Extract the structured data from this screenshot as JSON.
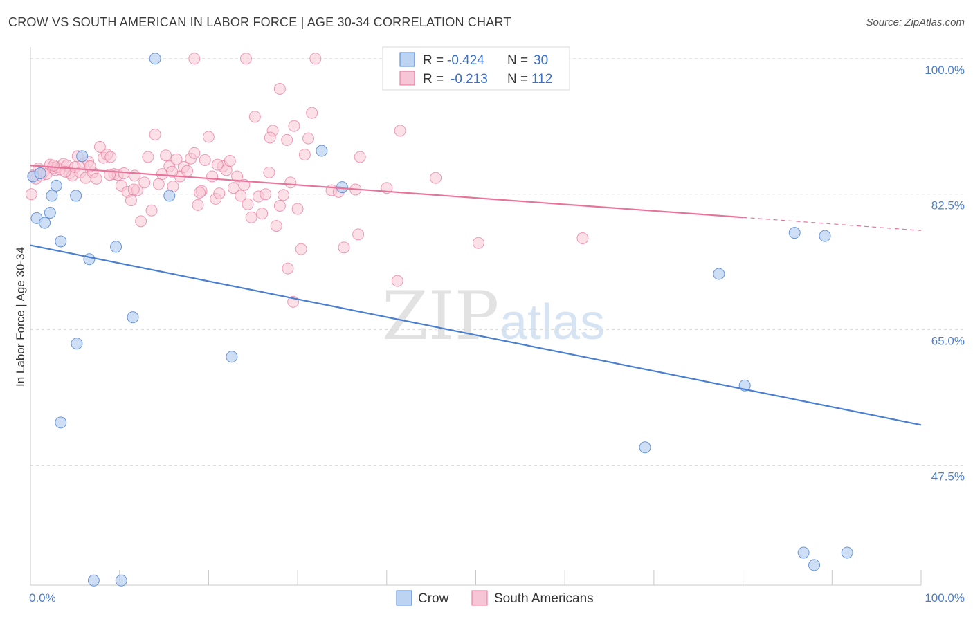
{
  "header": {
    "title": "CROW VS SOUTH AMERICAN IN LABOR FORCE | AGE 30-34 CORRELATION CHART",
    "source": "Source: ZipAtlas.com"
  },
  "watermark": {
    "zip": "ZIP",
    "atlas": "atlas"
  },
  "legend": {
    "r_label": "R =",
    "n_label": "N =",
    "rows": [
      {
        "r": "-0.424",
        "n": "30"
      },
      {
        "r": "-0.213",
        "n": "112"
      }
    ]
  },
  "chart_data": {
    "type": "scatter",
    "title": "CROW VS SOUTH AMERICAN IN LABOR FORCE | AGE 30-34 CORRELATION CHART",
    "xlabel": "",
    "ylabel": "In Labor Force | Age 30-34",
    "xlim": [
      0,
      100
    ],
    "ylim": [
      32,
      101.5
    ],
    "x_tick_labels": [
      "0.0%",
      "100.0%"
    ],
    "y_ticks": [
      100,
      82.5,
      65,
      47.5
    ],
    "y_tick_labels": [
      "100.0%",
      "82.5%",
      "65.0%",
      "47.5%"
    ],
    "grid": "horizontal dashed",
    "legend_position": "top-center",
    "colors": {
      "crow": "#4a7fd0",
      "crow_fill": "#bcd3f2",
      "south": "#e8739a",
      "south_fill": "#f7c6d6"
    },
    "series": [
      {
        "name": "Crow",
        "r": -0.424,
        "n": 30,
        "trend": {
          "x0": 0,
          "y0": 75.9,
          "x1": 100,
          "y1": 52.7
        },
        "points": [
          [
            0.3,
            84.8
          ],
          [
            0.7,
            79.4
          ],
          [
            1.6,
            78.8
          ],
          [
            2.2,
            80.1
          ],
          [
            2.4,
            82.3
          ],
          [
            2.9,
            83.6
          ],
          [
            3.4,
            76.4
          ],
          [
            5.1,
            82.3
          ],
          [
            5.8,
            87.4
          ],
          [
            6.6,
            74.1
          ],
          [
            7.1,
            32.6
          ],
          [
            9.6,
            75.7
          ],
          [
            10.2,
            32.6
          ],
          [
            11.5,
            66.6
          ],
          [
            14.0,
            100.0
          ],
          [
            15.6,
            82.3
          ],
          [
            5.2,
            63.2
          ],
          [
            3.4,
            53.0
          ],
          [
            22.6,
            61.5
          ],
          [
            32.7,
            88.1
          ],
          [
            35.0,
            83.4
          ],
          [
            69.0,
            49.8
          ],
          [
            77.3,
            72.2
          ],
          [
            80.2,
            57.8
          ],
          [
            85.8,
            77.5
          ],
          [
            86.8,
            36.2
          ],
          [
            88.0,
            34.6
          ],
          [
            89.2,
            77.1
          ],
          [
            91.7,
            36.2
          ],
          [
            1.1,
            85.2
          ]
        ]
      },
      {
        "name": "South Americans",
        "r": -0.213,
        "n": 112,
        "trend": {
          "x0": 0,
          "y0": 86.2,
          "x1": 80.0,
          "y1": 79.5,
          "dash_to_x": 100,
          "dash_to_y": 77.8
        },
        "points": [
          [
            0.1,
            82.5
          ],
          [
            0.4,
            85.0
          ],
          [
            0.6,
            84.5
          ],
          [
            0.9,
            85.8
          ],
          [
            1.2,
            84.9
          ],
          [
            1.5,
            85.4
          ],
          [
            1.8,
            85.1
          ],
          [
            2.2,
            86.3
          ],
          [
            2.5,
            85.9
          ],
          [
            2.8,
            85.6
          ],
          [
            3.0,
            86.0
          ],
          [
            3.3,
            85.7
          ],
          [
            3.7,
            86.4
          ],
          [
            4.1,
            86.2
          ],
          [
            4.4,
            85.2
          ],
          [
            4.7,
            84.9
          ],
          [
            5.0,
            86.0
          ],
          [
            5.3,
            87.4
          ],
          [
            5.6,
            85.3
          ],
          [
            5.9,
            86.4
          ],
          [
            6.2,
            84.6
          ],
          [
            6.5,
            86.7
          ],
          [
            7.0,
            85.3
          ],
          [
            7.4,
            84.5
          ],
          [
            7.8,
            88.6
          ],
          [
            8.2,
            87.2
          ],
          [
            8.6,
            87.6
          ],
          [
            9.0,
            87.3
          ],
          [
            9.4,
            85.1
          ],
          [
            9.8,
            85.0
          ],
          [
            10.2,
            83.6
          ],
          [
            10.5,
            85.2
          ],
          [
            10.9,
            82.8
          ],
          [
            11.3,
            81.7
          ],
          [
            11.7,
            84.9
          ],
          [
            12.0,
            83.0
          ],
          [
            12.4,
            79.0
          ],
          [
            12.8,
            84.0
          ],
          [
            13.2,
            87.3
          ],
          [
            13.6,
            80.4
          ],
          [
            14.0,
            90.2
          ],
          [
            14.4,
            83.8
          ],
          [
            14.8,
            85.1
          ],
          [
            15.2,
            87.5
          ],
          [
            15.6,
            86.1
          ],
          [
            16.0,
            83.5
          ],
          [
            16.4,
            87.0
          ],
          [
            16.8,
            84.8
          ],
          [
            17.2,
            86.0
          ],
          [
            17.6,
            85.5
          ],
          [
            18.0,
            87.1
          ],
          [
            18.4,
            87.8
          ],
          [
            18.8,
            81.1
          ],
          [
            19.2,
            82.9
          ],
          [
            19.6,
            86.9
          ],
          [
            20.0,
            89.9
          ],
          [
            20.4,
            84.8
          ],
          [
            20.8,
            81.9
          ],
          [
            21.2,
            82.6
          ],
          [
            21.6,
            86.1
          ],
          [
            22.0,
            85.6
          ],
          [
            22.4,
            86.8
          ],
          [
            22.8,
            83.3
          ],
          [
            23.2,
            84.8
          ],
          [
            23.6,
            82.3
          ],
          [
            24.0,
            83.7
          ],
          [
            24.4,
            81.2
          ],
          [
            24.8,
            79.5
          ],
          [
            25.2,
            92.5
          ],
          [
            25.6,
            82.2
          ],
          [
            26.0,
            80.0
          ],
          [
            26.4,
            82.5
          ],
          [
            26.8,
            85.3
          ],
          [
            27.2,
            90.7
          ],
          [
            27.6,
            78.4
          ],
          [
            28.0,
            81.0
          ],
          [
            28.4,
            82.4
          ],
          [
            28.8,
            89.5
          ],
          [
            29.2,
            84.0
          ],
          [
            29.6,
            91.3
          ],
          [
            30.0,
            80.6
          ],
          [
            30.4,
            75.4
          ],
          [
            30.8,
            87.6
          ],
          [
            31.2,
            89.7
          ],
          [
            31.6,
            93.0
          ],
          [
            32.0,
            100.0
          ],
          [
            36.5,
            83.1
          ],
          [
            33.8,
            83.0
          ],
          [
            34.6,
            82.8
          ],
          [
            35.2,
            75.6
          ],
          [
            36.8,
            77.3
          ],
          [
            37.0,
            87.3
          ],
          [
            40.0,
            83.3
          ],
          [
            41.2,
            71.3
          ],
          [
            41.5,
            90.7
          ],
          [
            45.5,
            84.6
          ],
          [
            50.3,
            76.2
          ],
          [
            62.0,
            76.8
          ],
          [
            18.4,
            100.0
          ],
          [
            24.2,
            100.0
          ],
          [
            28.0,
            96.1
          ],
          [
            26.9,
            89.8
          ],
          [
            28.9,
            72.9
          ],
          [
            29.5,
            68.6
          ],
          [
            19.0,
            82.7
          ],
          [
            21.0,
            86.3
          ],
          [
            11.6,
            83.1
          ],
          [
            3.9,
            85.4
          ],
          [
            6.7,
            86.1
          ],
          [
            8.9,
            85.0
          ],
          [
            15.9,
            85.4
          ],
          [
            2.6,
            86.2
          ]
        ]
      }
    ]
  }
}
